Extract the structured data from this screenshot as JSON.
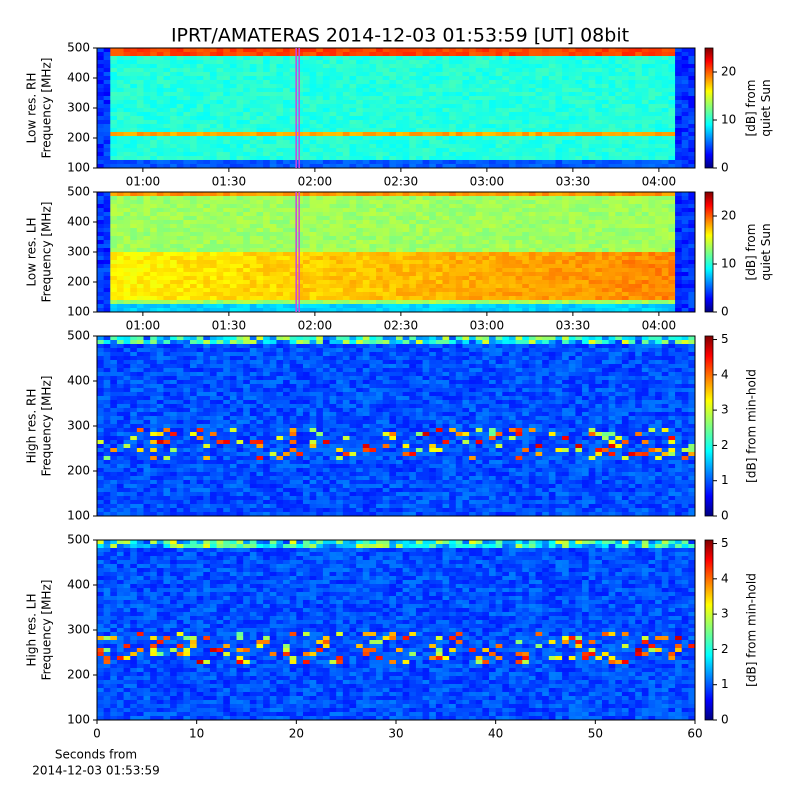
{
  "title": "IPRT/AMATERAS 2014-12-03 01:53:59 [UT]   08bit",
  "chart_data": [
    {
      "type": "spectrogram",
      "ylabel": [
        "Low res. RH",
        "Frequency [MHz]"
      ],
      "ylim": [
        100,
        500
      ],
      "yticks": [
        100,
        200,
        300,
        400,
        500
      ],
      "xlim": [
        44,
        252.6
      ],
      "xticks": [
        {
          "value": 60,
          "label": "01:00"
        },
        {
          "value": 90,
          "label": "01:30"
        },
        {
          "value": 120,
          "label": "02:00"
        },
        {
          "value": 150,
          "label": "02:30"
        },
        {
          "value": 180,
          "label": "03:00"
        },
        {
          "value": 210,
          "label": "03:30"
        },
        {
          "value": 240,
          "label": "04:00"
        }
      ],
      "marker": 114,
      "marker_color": "#cc44dd",
      "clim": [
        0,
        25
      ],
      "cticks": [
        0,
        10,
        20
      ],
      "clabel": [
        "[dB] from",
        "quiet Sun"
      ]
    },
    {
      "type": "spectrogram",
      "ylabel": [
        "Low res. LH",
        "Frequency [MHz]"
      ],
      "ylim": [
        100,
        500
      ],
      "yticks": [
        100,
        200,
        300,
        400,
        500
      ],
      "xlim": [
        44,
        252.6
      ],
      "xticks": [
        {
          "value": 60,
          "label": "01:00"
        },
        {
          "value": 90,
          "label": "01:30"
        },
        {
          "value": 120,
          "label": "02:00"
        },
        {
          "value": 150,
          "label": "02:30"
        },
        {
          "value": 180,
          "label": "03:00"
        },
        {
          "value": 210,
          "label": "03:30"
        },
        {
          "value": 240,
          "label": "04:00"
        }
      ],
      "marker": 114,
      "marker_color": "#cc44dd",
      "clim": [
        0,
        25
      ],
      "cticks": [
        0,
        10,
        20
      ],
      "clabel": [
        "[dB] from",
        "quiet Sun"
      ]
    },
    {
      "type": "spectrogram",
      "ylabel": [
        "High res. RH",
        "Frequency [MHz]"
      ],
      "ylim": [
        100,
        500
      ],
      "yticks": [
        100,
        200,
        300,
        400,
        500
      ],
      "xlim": [
        0,
        60
      ],
      "clim": [
        0,
        5.1
      ],
      "cticks": [
        0,
        1,
        2,
        3,
        4,
        5
      ],
      "clabel": [
        "[dB] from min-hold"
      ]
    },
    {
      "type": "spectrogram",
      "ylabel": [
        "High res. LH",
        "Frequency [MHz]"
      ],
      "ylim": [
        100,
        500
      ],
      "yticks": [
        100,
        200,
        300,
        400,
        500
      ],
      "xlim": [
        0,
        60
      ],
      "xticks": [
        0,
        10,
        20,
        30,
        40,
        50,
        60
      ],
      "xlabel": [
        "Seconds from",
        "2014-12-03 01:53:59"
      ],
      "clim": [
        0,
        5.1
      ],
      "cticks": [
        0,
        1,
        2,
        3,
        4,
        5
      ],
      "clabel": [
        "[dB] from min-hold"
      ]
    }
  ]
}
